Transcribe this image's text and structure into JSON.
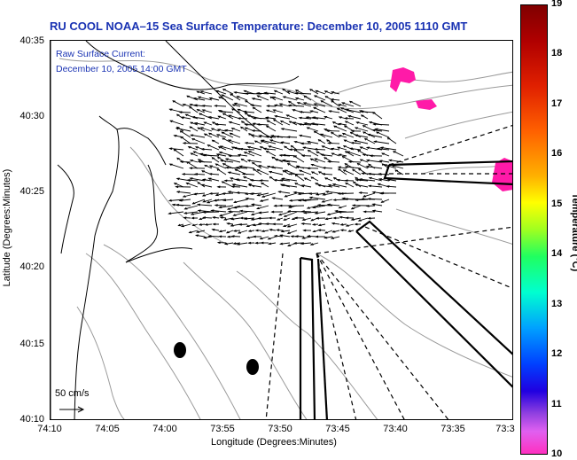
{
  "title": "RU COOL  NOAA–15  Sea Surface Temperature:  December 10, 2005 1110 GMT",
  "annotation": {
    "line1": "Raw Surface Current:",
    "line2": "December 10, 2005 14:00 GMT"
  },
  "axes": {
    "x_label": "Longitude (Degrees:Minutes)",
    "y_label": "Latitude (Degrees:Minutes)",
    "x_ticks": [
      "74:10",
      "74:05",
      "74:00",
      "73:55",
      "73:50",
      "73:45",
      "73:40",
      "73:35",
      "73:3"
    ],
    "y_ticks": [
      "40:35",
      "40:30",
      "40:25",
      "40:20",
      "40:15",
      "40:10"
    ]
  },
  "scale": {
    "label": "50 cm/s"
  },
  "colorbar": {
    "label": "Temperature (°C)",
    "ticks": [
      "19",
      "18",
      "17",
      "16",
      "15",
      "14",
      "13",
      "12",
      "11",
      "10"
    ]
  },
  "colors": {
    "title": "#1a33b3",
    "sst_patch": "#ff1aa8",
    "coastline": "#000000",
    "bathymetry": "#999999"
  }
}
